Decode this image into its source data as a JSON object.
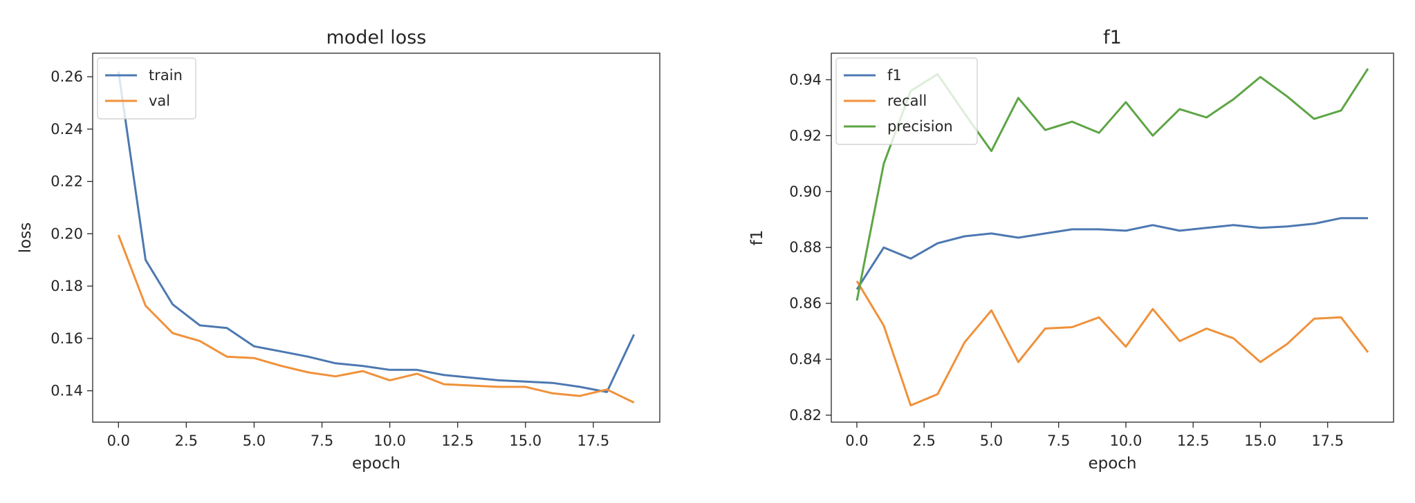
{
  "colors": {
    "blue": "#4c78b0",
    "orange": "#f0913a",
    "green": "#5da545"
  },
  "chart_data": [
    {
      "type": "line",
      "title": "model loss",
      "xlabel": "epoch",
      "ylabel": "loss",
      "xlim": [
        -0.95,
        19.95
      ],
      "ylim": [
        0.128,
        0.269
      ],
      "xticks": [
        0.0,
        2.5,
        5.0,
        7.5,
        10.0,
        12.5,
        15.0,
        17.5
      ],
      "xtick_labels": [
        "0.0",
        "2.5",
        "5.0",
        "7.5",
        "10.0",
        "12.5",
        "15.0",
        "17.5"
      ],
      "yticks": [
        0.14,
        0.16,
        0.18,
        0.2,
        0.22,
        0.24,
        0.26
      ],
      "ytick_labels": [
        "0.14",
        "0.16",
        "0.18",
        "0.20",
        "0.22",
        "0.24",
        "0.26"
      ],
      "legend_position": "top-left",
      "grid": false,
      "x": [
        0,
        1,
        2,
        3,
        4,
        5,
        6,
        7,
        8,
        9,
        10,
        11,
        12,
        13,
        14,
        15,
        16,
        17,
        18,
        19
      ],
      "series": [
        {
          "name": "train",
          "color": "#4c78b0",
          "values": [
            0.262,
            0.19,
            0.173,
            0.165,
            0.164,
            0.157,
            0.155,
            0.153,
            0.1505,
            0.1495,
            0.148,
            0.148,
            0.146,
            0.145,
            0.144,
            0.1435,
            0.143,
            0.1415,
            0.1395,
            0.1615
          ]
        },
        {
          "name": "val",
          "color": "#f0913a",
          "values": [
            0.1995,
            0.1725,
            0.162,
            0.159,
            0.153,
            0.1525,
            0.1495,
            0.147,
            0.1455,
            0.1475,
            0.144,
            0.1465,
            0.1425,
            0.142,
            0.1415,
            0.1415,
            0.139,
            0.138,
            0.1405,
            0.1355
          ]
        }
      ]
    },
    {
      "type": "line",
      "title": "f1",
      "xlabel": "epoch",
      "ylabel": "f1",
      "xlim": [
        -0.95,
        19.95
      ],
      "ylim": [
        0.8175,
        0.9495
      ],
      "xticks": [
        0.0,
        2.5,
        5.0,
        7.5,
        10.0,
        12.5,
        15.0,
        17.5
      ],
      "xtick_labels": [
        "0.0",
        "2.5",
        "5.0",
        "7.5",
        "10.0",
        "12.5",
        "15.0",
        "17.5"
      ],
      "yticks": [
        0.82,
        0.84,
        0.86,
        0.88,
        0.9,
        0.92,
        0.94
      ],
      "ytick_labels": [
        "0.82",
        "0.84",
        "0.86",
        "0.88",
        "0.90",
        "0.92",
        "0.94"
      ],
      "legend_position": "top-left",
      "grid": false,
      "x": [
        0,
        1,
        2,
        3,
        4,
        5,
        6,
        7,
        8,
        9,
        10,
        11,
        12,
        13,
        14,
        15,
        16,
        17,
        18,
        19
      ],
      "series": [
        {
          "name": "f1",
          "color": "#4c78b0",
          "values": [
            0.865,
            0.88,
            0.876,
            0.8815,
            0.884,
            0.885,
            0.8835,
            0.885,
            0.8865,
            0.8865,
            0.886,
            0.888,
            0.886,
            0.887,
            0.888,
            0.887,
            0.8875,
            0.8885,
            0.8905,
            0.8905
          ]
        },
        {
          "name": "recall",
          "color": "#f0913a",
          "values": [
            0.868,
            0.852,
            0.8235,
            0.8275,
            0.846,
            0.8575,
            0.839,
            0.851,
            0.8515,
            0.855,
            0.8445,
            0.858,
            0.8465,
            0.851,
            0.8475,
            0.839,
            0.8455,
            0.8545,
            0.855,
            0.8425
          ]
        },
        {
          "name": "precision",
          "color": "#5da545",
          "values": [
            0.861,
            0.91,
            0.936,
            0.942,
            0.928,
            0.9145,
            0.9335,
            0.922,
            0.925,
            0.921,
            0.932,
            0.92,
            0.9295,
            0.9265,
            0.933,
            0.941,
            0.934,
            0.926,
            0.929,
            0.944
          ]
        }
      ]
    }
  ]
}
